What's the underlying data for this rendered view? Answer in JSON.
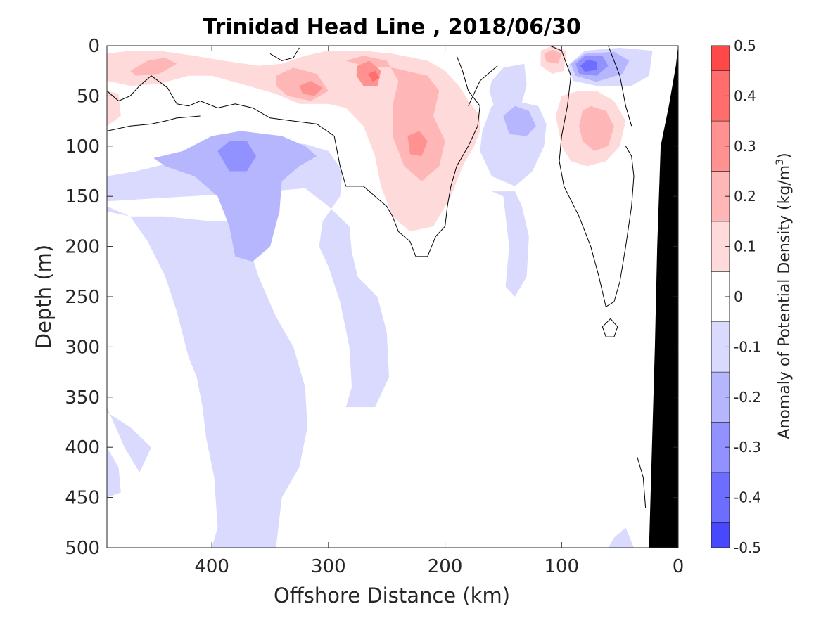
{
  "chart_data": {
    "type": "heatmap",
    "title": "Trinidad Head Line , 2018/06/30",
    "xlabel": "Offshore Distance (km)",
    "ylabel": "Depth (m)",
    "xlim": [
      490,
      0
    ],
    "ylim": [
      0,
      500
    ],
    "x_reversed": true,
    "y_reversed": true,
    "x_ticks": [
      400,
      300,
      200,
      100,
      0
    ],
    "y_ticks": [
      0,
      50,
      100,
      150,
      200,
      250,
      300,
      350,
      400,
      450,
      500
    ],
    "colorbar": {
      "label_main": "Anomaly of Potential Density (kg/m",
      "label_sup": "3",
      "label_end": ")",
      "min": -0.5,
      "max": 0.5,
      "tick_labels": [
        "0.5",
        "0.4",
        "0.3",
        "0.2",
        "0.1",
        "0",
        "-0.1",
        "-0.2",
        "-0.3",
        "-0.4",
        "-0.5"
      ],
      "levels": [
        -0.5,
        -0.45,
        -0.35,
        -0.25,
        -0.15,
        -0.05,
        0.05,
        0.15,
        0.25,
        0.35,
        0.45,
        0.5
      ],
      "colors": [
        "#0000ff",
        "#2424ff",
        "#4848ff",
        "#6d6dff",
        "#9191ff",
        "#b6b6ff",
        "#dadaff",
        "#ffffff",
        "#ffdada",
        "#ffb6b6",
        "#ff9191",
        "#ff6d6d",
        "#ff4848",
        "#ff2424",
        "#ff0000"
      ]
    },
    "features": [
      {
        "name": "deep offshore negative plume",
        "center_x_km": 375,
        "center_depth_m": 110,
        "min_anomaly": -0.25
      },
      {
        "name": "mid-shelf negative eddy",
        "center_x_km": 138,
        "center_depth_m": 75,
        "min_anomaly": -0.2
      },
      {
        "name": "nearshore surface negative core",
        "center_x_km": 75,
        "center_depth_m": 20,
        "min_anomaly": -0.35
      },
      {
        "name": "positive lens",
        "center_x_km": 265,
        "center_depth_m": 30,
        "max_anomaly": 0.3
      },
      {
        "name": "positive lens",
        "center_x_km": 225,
        "center_depth_m": 100,
        "max_anomaly": 0.2
      },
      {
        "name": "positive lens",
        "center_x_km": 315,
        "center_depth_m": 40,
        "max_anomaly": 0.25
      },
      {
        "name": "positive nearshore subsurface",
        "center_x_km": 70,
        "center_depth_m": 90,
        "max_anomaly": 0.15
      },
      {
        "name": "positive surface patch",
        "center_x_km": 110,
        "center_depth_m": 10,
        "max_anomaly": 0.25
      },
      {
        "name": "shelf bathymetry",
        "description": "sloping bottom near the coast"
      }
    ]
  }
}
